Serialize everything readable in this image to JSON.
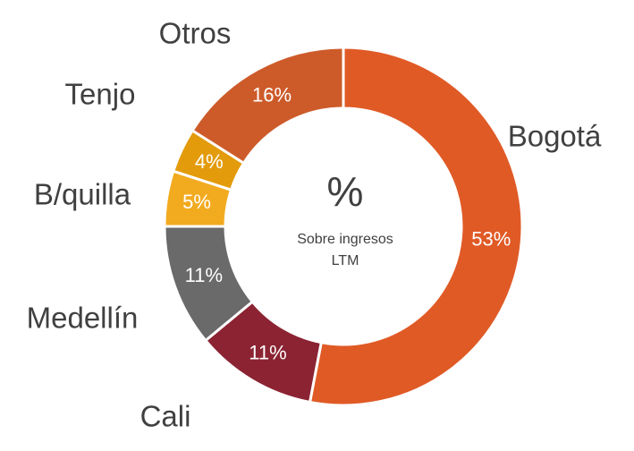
{
  "chart_data": {
    "type": "donut",
    "categories": [
      "Bogotá",
      "Cali",
      "Medellín",
      "B/quilla",
      "Tenjo",
      "Otros"
    ],
    "values": [
      53,
      11,
      11,
      5,
      4,
      16
    ],
    "value_labels": [
      "53%",
      "11%",
      "11%",
      "5%",
      "4%",
      "16%"
    ],
    "colors": [
      "#e05a26",
      "#8b2332",
      "#6a6a6a",
      "#f2ab1f",
      "#e39b0c",
      "#cd5b2a"
    ],
    "center_symbol": "%",
    "center_text": [
      "Sobre ingresos",
      "LTM"
    ]
  }
}
